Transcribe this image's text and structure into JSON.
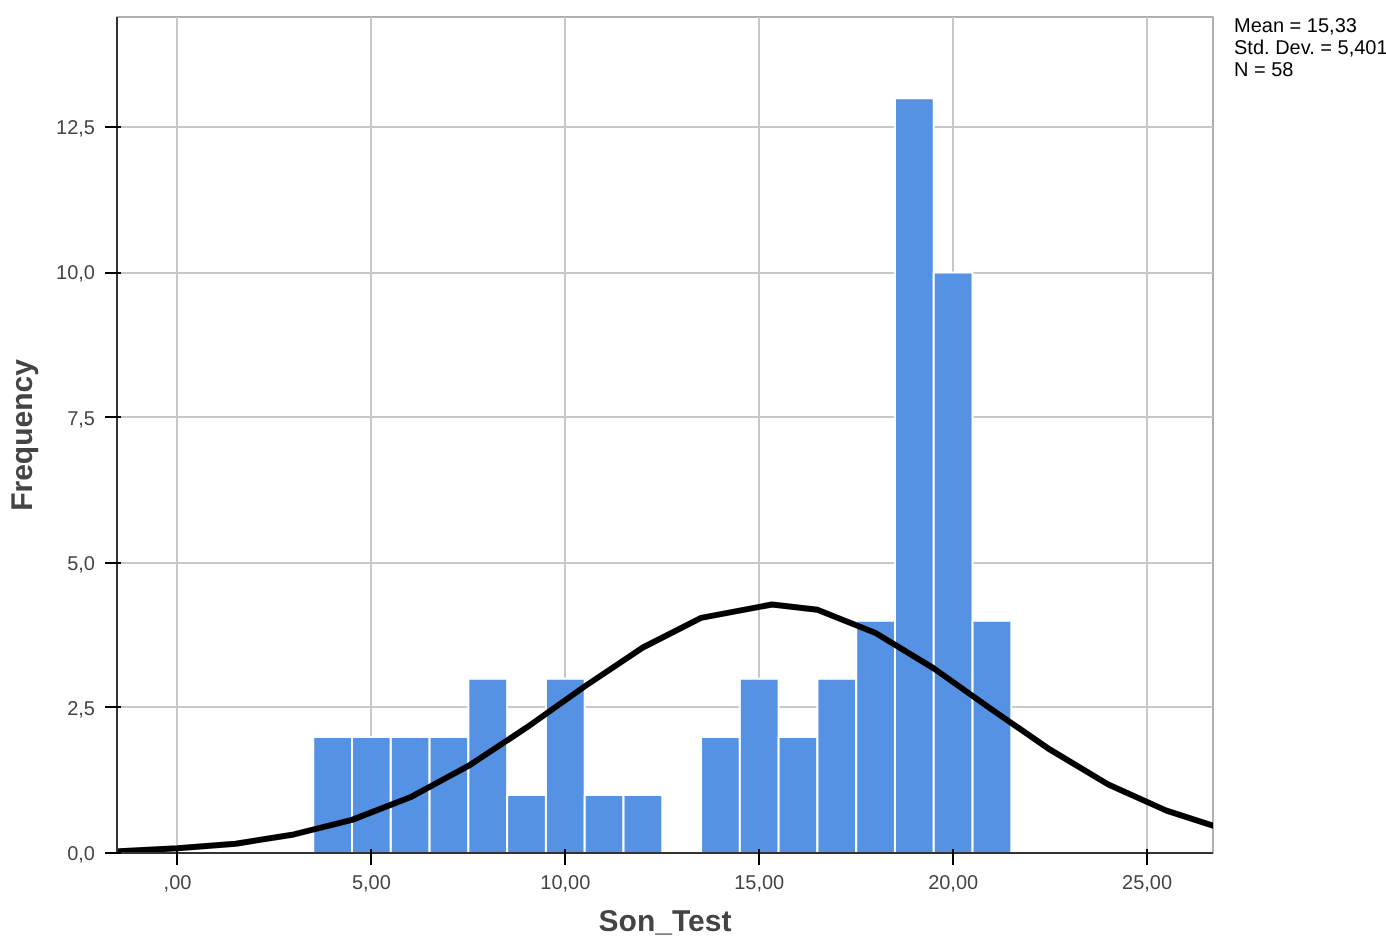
{
  "chart_data": {
    "type": "histogram",
    "xlabel": "Son_Test",
    "ylabel": "Frequency",
    "bins": [
      3.5,
      4.5,
      5.5,
      6.5,
      7.5,
      8.5,
      9.5,
      10.5,
      11.5,
      12.5,
      13.5,
      14.5,
      15.5,
      16.5,
      17.5,
      18.5,
      19.5,
      20.5,
      21.5
    ],
    "values": [
      2,
      2,
      2,
      2,
      3,
      1,
      3,
      1,
      1,
      0,
      2,
      3,
      2,
      3,
      4,
      13,
      10,
      4
    ],
    "color": "#5592e3",
    "series": [
      {
        "type": "line",
        "color": "#000000",
        "x": [
          -1.5,
          0,
          1.5,
          3,
          4.5,
          6,
          7.5,
          9,
          10.5,
          12,
          13.5,
          15.33,
          16.5,
          18,
          19.5,
          21,
          22.5,
          24,
          25.5,
          26.7
        ],
        "values": [
          0.03,
          0.08,
          0.16,
          0.32,
          0.57,
          0.96,
          1.5,
          2.16,
          2.87,
          3.54,
          4.05,
          4.28,
          4.19,
          3.79,
          3.18,
          2.47,
          1.78,
          1.18,
          0.73,
          0.47
        ]
      }
    ],
    "xlim": [
      -1.56,
      26.7
    ],
    "ylim": [
      0,
      14.4
    ],
    "xticks": [
      {
        "value": 0,
        "label": ",00"
      },
      {
        "value": 5,
        "label": "5,00"
      },
      {
        "value": 10,
        "label": "10,00"
      },
      {
        "value": 15,
        "label": "15,00"
      },
      {
        "value": 20,
        "label": "20,00"
      },
      {
        "value": 25,
        "label": "25,00"
      }
    ],
    "yticks": [
      {
        "value": 0,
        "label": "0,0"
      },
      {
        "value": 2.5,
        "label": "2,5"
      },
      {
        "value": 5,
        "label": "5,0"
      },
      {
        "value": 7.5,
        "label": "7,5"
      },
      {
        "value": 10,
        "label": "10,0"
      },
      {
        "value": 12.5,
        "label": "12,5"
      }
    ],
    "grid": true,
    "annotations": [
      "Mean = 15,33",
      "Std. Dev. = 5,401",
      "N = 58"
    ]
  }
}
